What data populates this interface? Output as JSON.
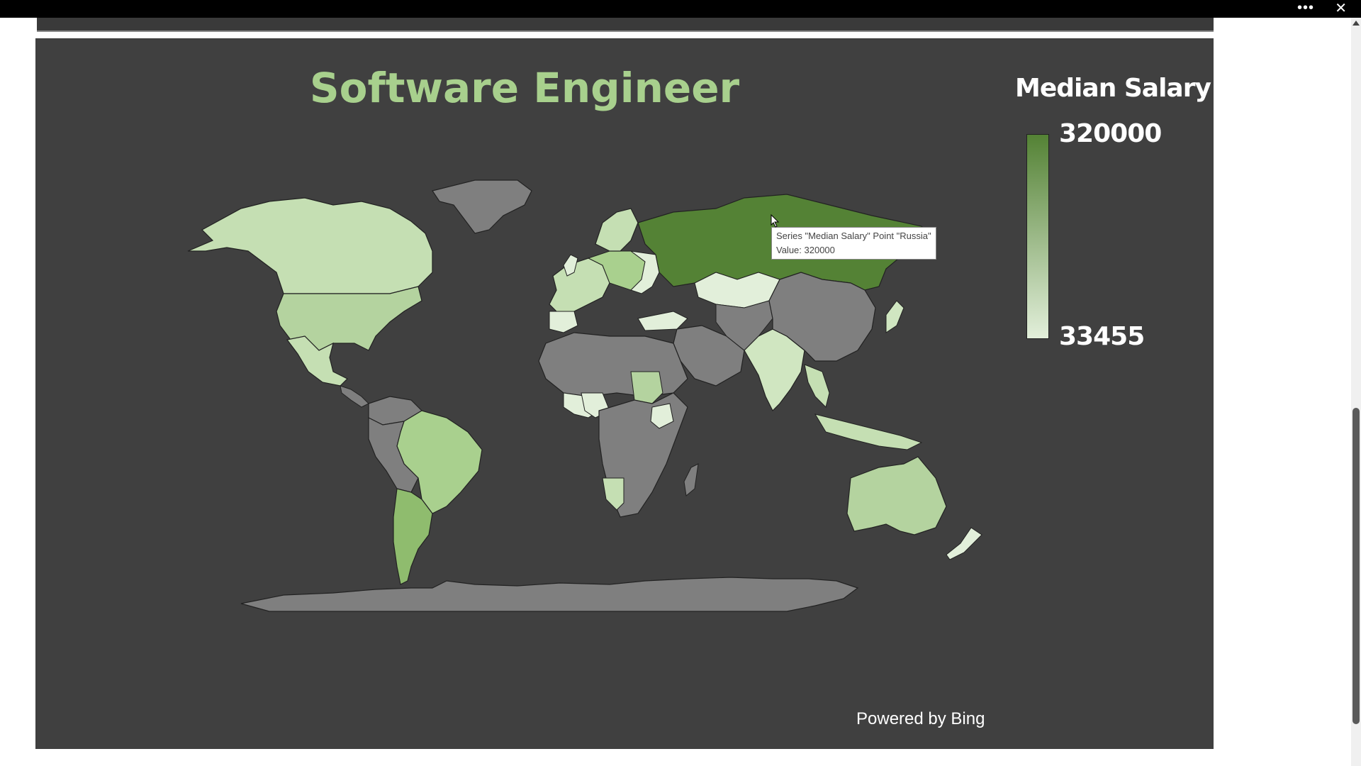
{
  "window": {
    "more_icon": "more-icon",
    "close_icon": "close-icon",
    "more_glyph": "•••",
    "close_glyph": "✕"
  },
  "chart_data": {
    "type": "map",
    "title": "Software Engineer",
    "legend": {
      "title": "Median Salary",
      "max": "320000",
      "min": "33455",
      "color_max": "#548235",
      "color_min": "#e2efda"
    },
    "no_data_color": "#7f7f7f",
    "highlighted_point": {
      "series": "Median Salary",
      "point": "Russia",
      "value": 320000
    },
    "attribution": "Powered by Bing"
  },
  "tooltip": {
    "line1": "Series \"Median Salary\" Point \"Russia\"",
    "line2": "Value: 320000"
  }
}
